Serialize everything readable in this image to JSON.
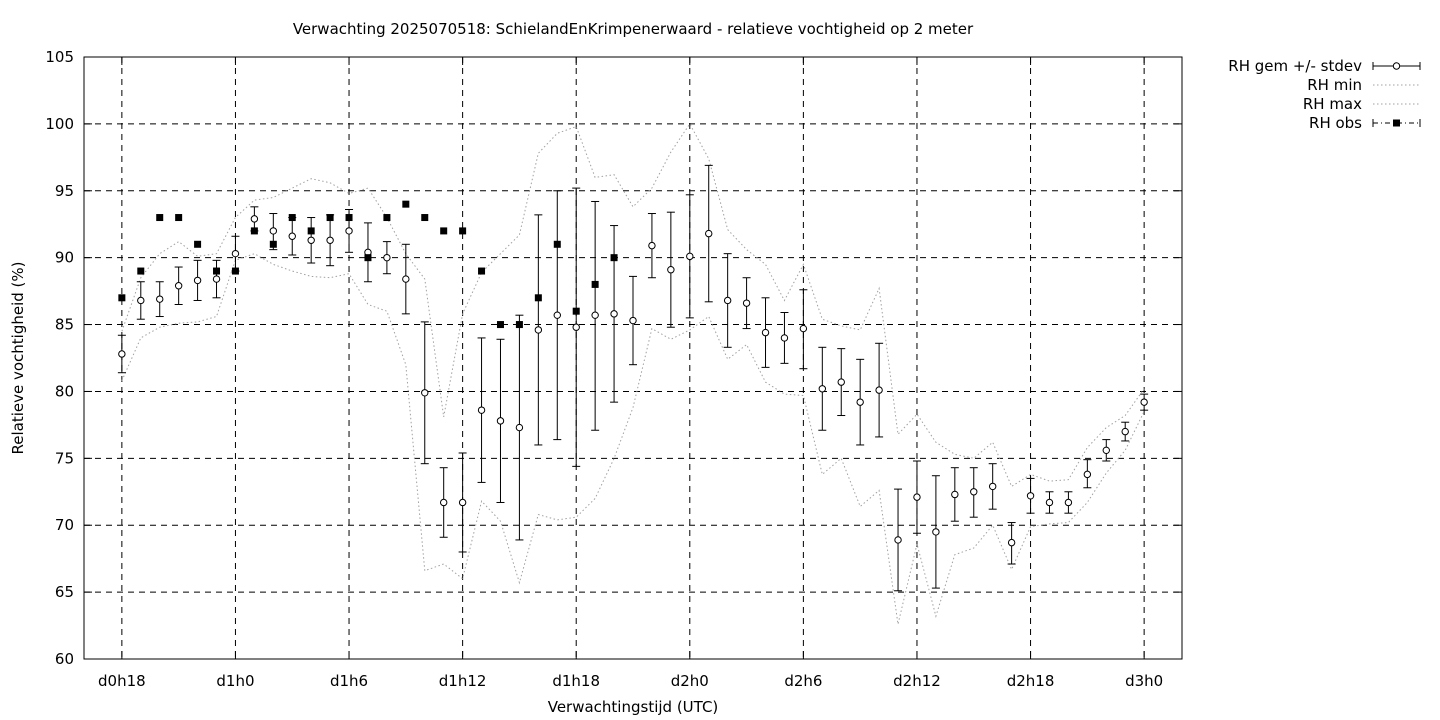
{
  "chart_data": {
    "type": "line",
    "title": "Verwachting 2025070518: SchielandEnKrimpenerwaard - relatieve vochtigheid op 2 meter",
    "xlabel": "Verwachtingstijd (UTC)",
    "ylabel": "Relatieve vochtigheid (%)",
    "ylim": [
      60,
      105
    ],
    "yticks": [
      60,
      65,
      70,
      75,
      80,
      85,
      90,
      95,
      100,
      105
    ],
    "xlim": [
      -2,
      56
    ],
    "xticks": [
      {
        "x": 0,
        "label": "d0h18"
      },
      {
        "x": 6,
        "label": "d1h0"
      },
      {
        "x": 12,
        "label": "d1h6"
      },
      {
        "x": 18,
        "label": "d1h12"
      },
      {
        "x": 24,
        "label": "d1h18"
      },
      {
        "x": 30,
        "label": "d2h0"
      },
      {
        "x": 36,
        "label": "d2h6"
      },
      {
        "x": 42,
        "label": "d2h12"
      },
      {
        "x": 48,
        "label": "d2h18"
      },
      {
        "x": 54,
        "label": "d3h0"
      }
    ],
    "grid": true,
    "legend_position": "outside-top-right",
    "series": [
      {
        "name": "RH gem +/- stdev",
        "style": "errorbar",
        "x": [
          0,
          1,
          2,
          3,
          4,
          5,
          6,
          7,
          8,
          9,
          10,
          11,
          12,
          13,
          14,
          15,
          16,
          17,
          18,
          19,
          20,
          21,
          22,
          23,
          24,
          25,
          26,
          27,
          28,
          29,
          30,
          31,
          32,
          33,
          34,
          35,
          36,
          37,
          38,
          39,
          40,
          41,
          42,
          43,
          44,
          45,
          46,
          47,
          48,
          49,
          50,
          51,
          52,
          53,
          54
        ],
        "mean": [
          82.8,
          86.8,
          86.9,
          87.9,
          88.3,
          88.4,
          90.3,
          92.9,
          92.0,
          91.6,
          91.3,
          91.3,
          92.0,
          90.4,
          90.0,
          88.4,
          79.9,
          71.7,
          71.7,
          78.6,
          77.8,
          77.3,
          84.6,
          85.7,
          84.8,
          85.7,
          85.8,
          85.3,
          90.9,
          89.1,
          90.1,
          91.8,
          86.8,
          86.6,
          84.4,
          84.0,
          84.7,
          80.2,
          80.7,
          79.2,
          80.1,
          68.9,
          72.1,
          69.5,
          72.3,
          72.5,
          72.9,
          68.7,
          72.2,
          71.7,
          71.7,
          73.8,
          75.6,
          77.0,
          79.2
        ],
        "low": [
          81.4,
          85.4,
          85.6,
          86.5,
          86.8,
          87.0,
          89.0,
          92.0,
          90.6,
          90.2,
          89.6,
          89.4,
          90.4,
          88.2,
          88.8,
          85.8,
          74.6,
          69.1,
          68.0,
          73.2,
          71.7,
          68.9,
          76.0,
          76.4,
          74.4,
          77.1,
          79.2,
          82.0,
          88.5,
          84.8,
          85.5,
          86.7,
          83.3,
          84.7,
          81.8,
          82.1,
          81.7,
          77.1,
          78.2,
          76.0,
          76.6,
          65.1,
          69.4,
          65.3,
          70.3,
          70.6,
          71.2,
          67.1,
          70.9,
          70.9,
          70.9,
          72.8,
          74.8,
          76.3,
          78.6
        ],
        "high": [
          84.2,
          88.2,
          88.2,
          89.3,
          89.8,
          89.8,
          91.6,
          93.8,
          93.3,
          93.0,
          93.0,
          93.2,
          93.6,
          92.6,
          91.2,
          91.0,
          85.2,
          74.3,
          75.4,
          84.0,
          83.9,
          85.7,
          93.2,
          95.0,
          95.2,
          94.2,
          92.4,
          88.6,
          93.3,
          93.4,
          94.7,
          96.9,
          90.3,
          88.5,
          87.0,
          85.9,
          87.6,
          83.3,
          83.2,
          82.4,
          83.6,
          72.7,
          74.8,
          73.7,
          74.3,
          74.3,
          74.6,
          70.2,
          73.5,
          72.5,
          72.5,
          74.9,
          76.4,
          77.7,
          79.8
        ]
      },
      {
        "name": "RH min",
        "style": "dotted",
        "x": [
          0,
          1,
          2,
          3,
          4,
          5,
          6,
          7,
          8,
          9,
          10,
          11,
          12,
          13,
          14,
          15,
          16,
          17,
          18,
          19,
          20,
          21,
          22,
          23,
          24,
          25,
          26,
          27,
          28,
          29,
          30,
          31,
          32,
          33,
          34,
          35,
          36,
          37,
          38,
          39,
          40,
          41,
          42,
          43,
          44,
          45,
          46,
          47,
          48,
          49,
          50,
          51,
          52,
          53,
          54
        ],
        "values": [
          80.8,
          84.0,
          84.8,
          85.1,
          85.2,
          85.6,
          89.8,
          90.3,
          89.5,
          89.0,
          88.6,
          88.5,
          88.8,
          86.5,
          86.0,
          82.0,
          66.6,
          67.1,
          66.0,
          71.8,
          70.3,
          65.7,
          70.8,
          70.4,
          70.6,
          72.0,
          75.0,
          78.8,
          84.7,
          83.9,
          84.6,
          85.6,
          82.4,
          83.5,
          80.7,
          79.8,
          79.7,
          73.8,
          75.0,
          71.4,
          72.6,
          62.6,
          68.6,
          63.2,
          67.8,
          68.3,
          70.0,
          66.7,
          69.9,
          70.1,
          70.2,
          71.7,
          73.9,
          75.6,
          78.5
        ]
      },
      {
        "name": "RH max",
        "style": "dotted",
        "x": [
          0,
          1,
          2,
          3,
          4,
          5,
          6,
          7,
          8,
          9,
          10,
          11,
          12,
          13,
          14,
          15,
          16,
          17,
          18,
          19,
          20,
          21,
          22,
          23,
          24,
          25,
          26,
          27,
          28,
          29,
          30,
          31,
          32,
          33,
          34,
          35,
          36,
          37,
          38,
          39,
          40,
          41,
          42,
          43,
          44,
          45,
          46,
          47,
          48,
          49,
          50,
          51,
          52,
          53,
          54
        ],
        "values": [
          84.5,
          88.5,
          90.3,
          91.2,
          90.1,
          90.3,
          93.0,
          94.3,
          94.5,
          95.2,
          95.9,
          95.6,
          94.8,
          95.2,
          93.0,
          90.3,
          88.4,
          78.1,
          85.8,
          88.9,
          90.3,
          91.7,
          97.8,
          99.3,
          99.8,
          96.0,
          96.2,
          93.8,
          95.2,
          97.9,
          100.0,
          97.4,
          92.1,
          90.6,
          89.5,
          86.8,
          89.5,
          85.4,
          84.9,
          84.6,
          87.7,
          76.8,
          78.3,
          76.2,
          75.3,
          75.0,
          76.2,
          72.9,
          73.8,
          73.3,
          73.4,
          75.8,
          77.3,
          78.2,
          80.2
        ]
      },
      {
        "name": "RH obs",
        "style": "points",
        "x": [
          0,
          1,
          2,
          3,
          4,
          5,
          6,
          7,
          8,
          9,
          10,
          11,
          12,
          13,
          14,
          15,
          16,
          17,
          18,
          19,
          20,
          21,
          22,
          23,
          24,
          25,
          26
        ],
        "values": [
          87,
          89,
          93,
          93,
          91,
          89,
          89,
          92,
          91,
          93,
          92,
          93,
          93,
          90,
          93,
          94,
          93,
          92,
          92,
          89,
          85,
          85,
          87,
          91,
          86,
          88,
          90
        ]
      }
    ]
  }
}
